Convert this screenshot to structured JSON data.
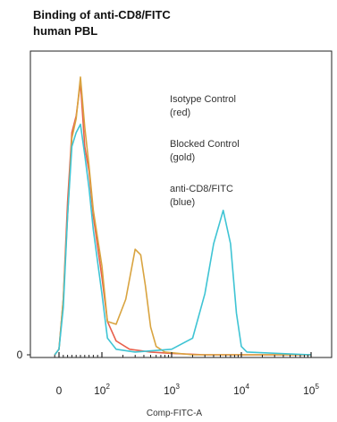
{
  "chart_data": {
    "type": "line",
    "title": [
      "Binding of anti-CD8/FITC",
      "human PBL"
    ],
    "xlabel": "Comp-FITC-A",
    "ylabel": "",
    "x_scale": "biexponential",
    "xlim": [
      -10,
      100000
    ],
    "y_ticks": [
      {
        "label": "0",
        "value": 0
      }
    ],
    "x_ticks": [
      {
        "value": 0,
        "base": "0",
        "exp": ""
      },
      {
        "value": 100,
        "base": "10",
        "exp": "2"
      },
      {
        "value": 1000,
        "base": "10",
        "exp": "3"
      },
      {
        "value": 10000,
        "base": "10",
        "exp": "4"
      },
      {
        "value": 100000,
        "base": "10",
        "exp": "5"
      }
    ],
    "legend": [
      {
        "line1": "Isotype Control",
        "line2": "(red)"
      },
      {
        "line1": "Blocked Control",
        "line2": "(gold)"
      },
      {
        "line1": "anti-CD8/FITC",
        "line2": "(blue)"
      }
    ],
    "series": [
      {
        "name": "Isotype Control",
        "color": "#e8604c",
        "points": [
          [
            -10,
            0
          ],
          [
            0,
            0.02
          ],
          [
            10,
            0.2
          ],
          [
            20,
            0.55
          ],
          [
            30,
            0.8
          ],
          [
            40,
            0.86
          ],
          [
            50,
            0.98
          ],
          [
            60,
            0.75
          ],
          [
            70,
            0.66
          ],
          [
            80,
            0.5
          ],
          [
            100,
            0.28
          ],
          [
            120,
            0.12
          ],
          [
            160,
            0.05
          ],
          [
            250,
            0.02
          ],
          [
            500,
            0.01
          ],
          [
            1000,
            0.005
          ],
          [
            3000,
            0
          ],
          [
            100000,
            0
          ]
        ]
      },
      {
        "name": "Blocked Control",
        "color": "#d9a440",
        "points": [
          [
            -10,
            0
          ],
          [
            0,
            0.02
          ],
          [
            10,
            0.2
          ],
          [
            20,
            0.5
          ],
          [
            30,
            0.78
          ],
          [
            40,
            0.85
          ],
          [
            50,
            1.0
          ],
          [
            60,
            0.82
          ],
          [
            70,
            0.68
          ],
          [
            80,
            0.52
          ],
          [
            100,
            0.32
          ],
          [
            120,
            0.12
          ],
          [
            160,
            0.11
          ],
          [
            220,
            0.2
          ],
          [
            300,
            0.38
          ],
          [
            360,
            0.36
          ],
          [
            420,
            0.25
          ],
          [
            500,
            0.1
          ],
          [
            600,
            0.03
          ],
          [
            800,
            0.01
          ],
          [
            2000,
            0
          ],
          [
            100000,
            0
          ]
        ]
      },
      {
        "name": "anti-CD8/FITC",
        "color": "#3fc4d4",
        "points": [
          [
            -10,
            0
          ],
          [
            0,
            0.02
          ],
          [
            10,
            0.17
          ],
          [
            20,
            0.5
          ],
          [
            30,
            0.75
          ],
          [
            40,
            0.8
          ],
          [
            50,
            0.83
          ],
          [
            60,
            0.72
          ],
          [
            70,
            0.6
          ],
          [
            80,
            0.45
          ],
          [
            100,
            0.22
          ],
          [
            120,
            0.06
          ],
          [
            160,
            0.02
          ],
          [
            300,
            0.01
          ],
          [
            1000,
            0.02
          ],
          [
            2000,
            0.06
          ],
          [
            3000,
            0.22
          ],
          [
            4000,
            0.4
          ],
          [
            5500,
            0.52
          ],
          [
            7000,
            0.4
          ],
          [
            8500,
            0.15
          ],
          [
            10000,
            0.03
          ],
          [
            12000,
            0.01
          ],
          [
            100000,
            0
          ]
        ]
      }
    ]
  }
}
